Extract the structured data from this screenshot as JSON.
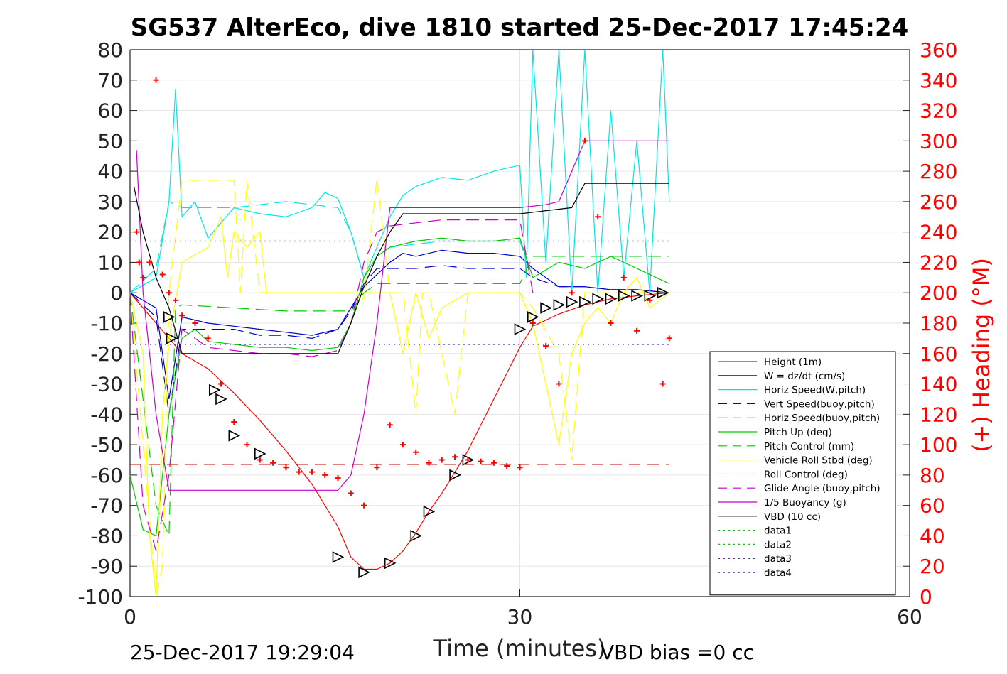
{
  "chart_data": {
    "type": "line",
    "title": "SG537 AlterEco, dive 1810 started 25-Dec-2017 17:45:24",
    "xlabel": "Time (minutes)",
    "ylabel": "",
    "ylabel_right": "(+) Heading (°M)",
    "xlim": [
      0,
      60
    ],
    "ylim": [
      -100,
      80
    ],
    "ylim_right": [
      0,
      360
    ],
    "x_ticks": [
      "0",
      "30",
      "60"
    ],
    "y_ticks": [
      "80",
      "70",
      "60",
      "50",
      "40",
      "30",
      "20",
      "10",
      "0",
      "-10",
      "-20",
      "-30",
      "-40",
      "-50",
      "-60",
      "-70",
      "-80",
      "-90",
      "-100"
    ],
    "y_ticks_right": [
      "360",
      "340",
      "320",
      "300",
      "280",
      "260",
      "240",
      "220",
      "200",
      "180",
      "160",
      "140",
      "120",
      "100",
      "80",
      "60",
      "40",
      "20",
      "0"
    ],
    "grid": true,
    "legend_position": "bottom-right",
    "footer_left": "25-Dec-2017 19:29:04",
    "footer_right": "VBD bias =0 cc",
    "colors": {
      "heading": "#ff0000",
      "right_axis": "#ff0000"
    },
    "series": [
      {
        "name": "Height (1m)",
        "color": "#ff0000",
        "dash": "solid",
        "x": [
          0,
          3,
          4,
          6,
          8,
          10,
          12,
          14,
          16,
          17,
          18,
          19,
          20,
          21,
          22,
          23,
          24,
          26,
          28,
          30,
          31,
          33,
          35,
          37,
          39,
          41.5
        ],
        "y": [
          0,
          -15,
          -20,
          -25,
          -33,
          -42,
          -52,
          -63,
          -77,
          -87,
          -91,
          -91,
          -89,
          -85,
          -79,
          -72,
          -66,
          -52,
          -35,
          -18,
          -11,
          -7,
          -4,
          -2,
          -1,
          0
        ]
      },
      {
        "name": "W = dz/dt (cm/s)",
        "color": "#0000cc",
        "dash": "solid",
        "x": [
          0,
          2,
          3,
          4,
          6,
          8,
          10,
          12,
          14,
          16,
          17,
          18,
          19,
          20,
          21,
          22,
          24,
          26,
          28,
          30,
          31,
          33,
          35,
          37,
          39,
          41.5
        ],
        "y": [
          0,
          -5,
          -35,
          -8,
          -10,
          -11,
          -12,
          -13,
          -14,
          -12,
          -5,
          2,
          6,
          10,
          13,
          12,
          14,
          13,
          13,
          12,
          8,
          2,
          2,
          1,
          1,
          0
        ]
      },
      {
        "name": "Horiz Speed(W,pitch)",
        "color": "#00e5e5",
        "dash": "solid",
        "x": [
          0,
          2,
          3,
          3.5,
          4,
          5,
          6,
          8,
          10,
          12,
          14,
          15,
          16,
          17,
          18,
          19,
          20,
          21,
          22,
          24,
          26,
          28,
          30,
          30.5,
          31,
          32,
          33,
          34,
          35,
          36,
          37,
          38,
          39,
          40,
          41,
          41.5
        ],
        "y": [
          0,
          5,
          30,
          67,
          25,
          30,
          18,
          28,
          26,
          25,
          28,
          33,
          31,
          20,
          5,
          15,
          25,
          32,
          35,
          38,
          37,
          40,
          42,
          5,
          80,
          10,
          80,
          0,
          80,
          0,
          60,
          5,
          50,
          0,
          80,
          30
        ]
      },
      {
        "name": "Vert Speed(buoy,pitch)",
        "color": "#0000cc",
        "dash": "dashed",
        "x": [
          0,
          2,
          3,
          4,
          6,
          8,
          10,
          12,
          14,
          16,
          17,
          18,
          19,
          20,
          21,
          22,
          24,
          26,
          28,
          30,
          31,
          33,
          35,
          37,
          39,
          41.5
        ],
        "y": [
          0,
          -8,
          -40,
          -12,
          -12,
          -12,
          -14,
          -14,
          -15,
          -12,
          -6,
          3,
          8,
          8,
          8,
          8,
          9,
          8,
          8,
          8,
          5,
          2,
          2,
          1,
          1,
          0
        ]
      },
      {
        "name": "Horiz Speed(buoy,pitch)",
        "color": "#00e5e5",
        "dash": "dashed",
        "x": [
          0,
          2,
          3,
          4,
          6,
          8,
          10,
          12,
          14,
          16,
          17,
          18,
          19,
          20,
          22,
          24,
          26,
          28,
          30,
          31
        ],
        "y": [
          0,
          8,
          30,
          28,
          28,
          28,
          29,
          30,
          29,
          28,
          20,
          5,
          12,
          15,
          16,
          17,
          17,
          17,
          17,
          5
        ]
      },
      {
        "name": "Pitch Up (deg)",
        "color": "#00cc00",
        "dash": "solid",
        "x": [
          0,
          1,
          2,
          3,
          4,
          5,
          6,
          8,
          10,
          12,
          14,
          16,
          17,
          18,
          19,
          20,
          22,
          24,
          26,
          28,
          30,
          31,
          33,
          35,
          37,
          39,
          41.5
        ],
        "y": [
          -60,
          -78,
          -80,
          -40,
          -15,
          -12,
          -16,
          -17,
          -18,
          -18,
          -19,
          -18,
          -10,
          5,
          12,
          15,
          17,
          18,
          17,
          17,
          18,
          5,
          10,
          8,
          12,
          8,
          3
        ]
      },
      {
        "name": "Pitch Control (mm)",
        "color": "#00cc00",
        "dash": "dashed",
        "x": [
          0,
          2,
          3,
          3.5,
          4,
          8,
          12,
          16,
          17,
          18,
          19,
          20,
          24,
          28,
          30,
          31,
          33,
          37,
          41.5
        ],
        "y": [
          0,
          -70,
          -80,
          -5,
          -4,
          -5,
          -6,
          -6,
          -6,
          0,
          3,
          3,
          3,
          3,
          3,
          12,
          12,
          12,
          12
        ]
      },
      {
        "name": "Vehicle Roll Stbd (deg)",
        "color": "#ffff00",
        "dash": "solid",
        "x": [
          0,
          1,
          1.5,
          2,
          2.5,
          3,
          4,
          6,
          7,
          7.5,
          8,
          9,
          10,
          10.5,
          11,
          14,
          16,
          17,
          18,
          19,
          20,
          21,
          22,
          23,
          24,
          26,
          28,
          30,
          31,
          32,
          33,
          34,
          35,
          36,
          37,
          38,
          39,
          40,
          41.5
        ],
        "y": [
          0,
          -20,
          -80,
          -100,
          -40,
          -15,
          10,
          15,
          25,
          5,
          20,
          15,
          20,
          0,
          0,
          0,
          0,
          0,
          0,
          0,
          0,
          -20,
          0,
          -15,
          -5,
          0,
          0,
          0,
          -10,
          -30,
          -50,
          -20,
          -10,
          -5,
          -10,
          0,
          5,
          -5,
          0
        ]
      },
      {
        "name": "Roll Control (deg)",
        "color": "#ffff00",
        "dash": "dashed",
        "x": [
          0,
          2,
          2.5,
          3,
          4,
          6,
          8,
          8.5,
          9,
          10,
          16,
          17,
          18,
          19,
          20,
          21,
          22,
          22.5,
          23,
          25,
          26,
          28,
          30,
          31,
          33,
          34,
          35,
          37,
          41.5
        ],
        "y": [
          0,
          -100,
          -90,
          0,
          37,
          37,
          37,
          0,
          37,
          0,
          0,
          0,
          -2,
          38,
          0,
          0,
          -40,
          0,
          0,
          -40,
          0,
          0,
          0,
          -5,
          -20,
          -55,
          0,
          0,
          0
        ]
      },
      {
        "name": "Glide Angle (buoy,pitch)",
        "color": "#cc00cc",
        "dash": "dashed",
        "x": [
          0,
          1,
          2,
          3,
          4,
          6,
          8,
          10,
          12,
          14,
          16,
          17,
          18,
          19,
          20,
          22,
          24,
          26,
          28,
          30,
          31
        ],
        "y": [
          0,
          -70,
          -85,
          -60,
          -12,
          -18,
          -19,
          -20,
          -20,
          -21,
          -19,
          -10,
          10,
          20,
          22,
          23,
          24,
          24,
          24,
          24,
          0
        ]
      },
      {
        "name": "1/5 Buoyancy (g)",
        "color": "#cc00cc",
        "dash": "solid",
        "x": [
          0.5,
          1,
          2,
          3,
          16,
          17,
          18,
          19,
          20,
          30,
          32,
          33,
          34,
          35,
          41.5
        ],
        "y": [
          47,
          0,
          -40,
          -65,
          -65,
          -60,
          -40,
          -10,
          28,
          28,
          29,
          30,
          40,
          50,
          50
        ]
      },
      {
        "name": "VBD (10 cc)",
        "color": "#000000",
        "dash": "solid",
        "x": [
          0.3,
          1,
          2,
          3,
          4,
          16,
          17,
          18,
          19,
          20,
          21,
          30,
          34,
          35,
          36,
          41.5
        ],
        "y": [
          35,
          20,
          5,
          -5,
          -20,
          -20,
          -10,
          2,
          12,
          20,
          26,
          26,
          28,
          36,
          36,
          36
        ]
      },
      {
        "name": "data1",
        "color": "#00cc00",
        "dash": "dotted",
        "x": [],
        "y": []
      },
      {
        "name": "data2",
        "color": "#00cc00",
        "dash": "dotted",
        "x": [],
        "y": []
      },
      {
        "name": "data3",
        "color": "#000088",
        "dash": "dotted",
        "x": [
          0,
          41.5
        ],
        "y": [
          17,
          17
        ]
      },
      {
        "name": "data4",
        "color": "#0000cc",
        "dash": "dotted",
        "x": [
          0,
          41.5
        ],
        "y": [
          -17,
          -17
        ]
      }
    ],
    "reference_line": {
      "color": "#cc0000",
      "dash": "dashed",
      "y": -56.5,
      "x": [
        0,
        41.5
      ]
    },
    "heading_points": {
      "x": [
        0.5,
        0.7,
        1,
        1.5,
        2,
        2.5,
        3,
        3.5,
        4,
        5,
        6,
        7,
        8,
        9,
        10,
        11,
        12,
        13,
        14,
        15,
        16,
        17,
        18,
        19,
        20,
        21,
        22,
        23,
        24,
        25,
        26,
        27,
        28,
        29,
        30,
        31,
        32,
        33,
        34,
        35,
        36,
        37,
        38,
        39,
        40,
        41,
        41.5
      ],
      "y": [
        240,
        220,
        210,
        220,
        340,
        212,
        200,
        195,
        185,
        180,
        170,
        140,
        115,
        100,
        90,
        88,
        85,
        82,
        82,
        80,
        78,
        68,
        60,
        85,
        113,
        100,
        95,
        88,
        90,
        92,
        90,
        89,
        88,
        86,
        85,
        180,
        165,
        140,
        200,
        300,
        250,
        180,
        210,
        175,
        195,
        140,
        170
      ]
    },
    "markers": {
      "x": [
        3,
        3.2,
        6.5,
        7,
        8,
        10,
        16,
        18,
        20,
        22,
        23,
        25,
        26,
        30,
        31,
        32,
        33,
        34,
        35,
        36,
        37,
        38,
        39,
        40,
        41
      ],
      "y": [
        -8,
        -15,
        -32,
        -35,
        -47,
        -53,
        -87,
        -92,
        -89,
        -80,
        -72,
        -60,
        -55,
        -12,
        -8,
        -5,
        -4,
        -3,
        -3,
        -2,
        -2,
        -1,
        -1,
        -1,
        0
      ]
    }
  }
}
